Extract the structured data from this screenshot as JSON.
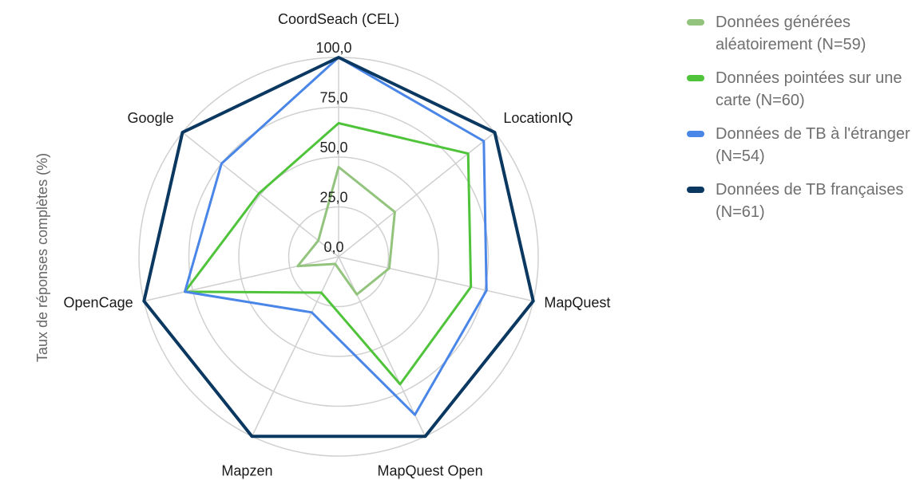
{
  "chart_data": {
    "type": "radar",
    "ylabel": "Taux de réponses complètes (%)",
    "rlim": [
      0,
      100
    ],
    "r_ticks": [
      "0,0",
      "25,0",
      "50,0",
      "75,0",
      "100,0"
    ],
    "r_tick_values": [
      0,
      25,
      50,
      75,
      100
    ],
    "grid": true,
    "legend_position": "right",
    "categories": [
      "CoordSeach (CEL)",
      "LocationIQ",
      "MapQuest",
      "MapQuest Open",
      "Mapzen",
      "OpenCage",
      "Google"
    ],
    "series": [
      {
        "name": "Données générées aléatoirement (N=59)",
        "color": "#93c47d",
        "values": [
          45,
          36,
          26,
          21,
          4,
          21,
          13
        ]
      },
      {
        "name": "Données pointées sur une carte (N=60)",
        "color": "#4fc43b",
        "values": [
          67,
          83,
          68,
          71,
          20,
          79,
          51
        ]
      },
      {
        "name": "Données de TB à l'étranger (N=54)",
        "color": "#4a86e8",
        "values": [
          100,
          93,
          76,
          88,
          31,
          79,
          75
        ]
      },
      {
        "name": "Données de TB françaises (N=61)",
        "color": "#0b3861",
        "values": [
          100,
          100,
          100,
          100,
          100,
          100,
          100
        ]
      }
    ]
  }
}
